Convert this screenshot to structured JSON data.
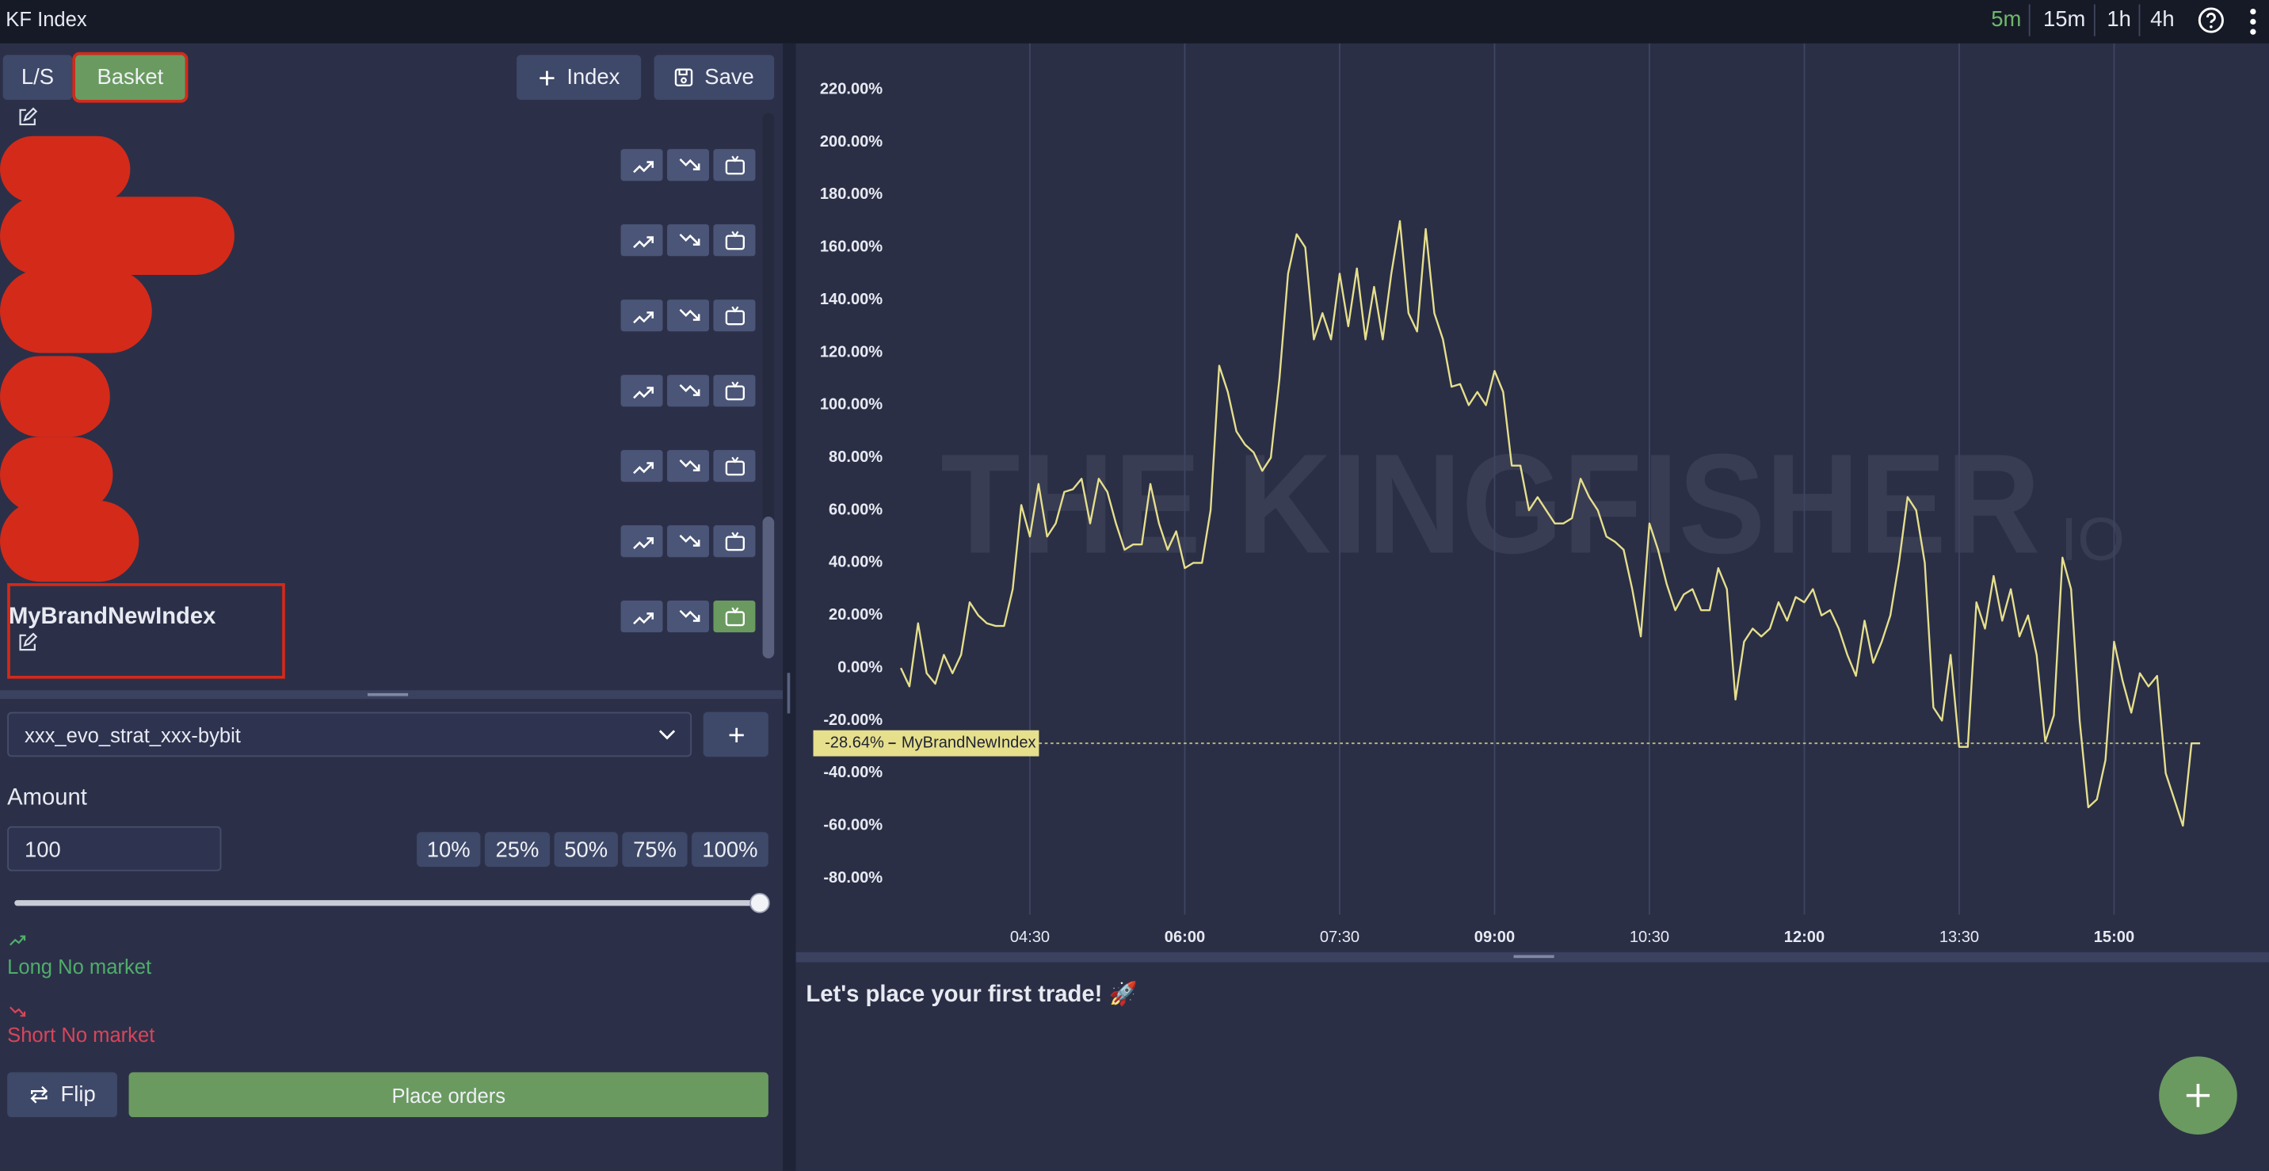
{
  "header": {
    "title": "KF Index",
    "timeframes": [
      "5m",
      "15m",
      "1h",
      "4h"
    ]
  },
  "left_panel": {
    "tabs": [
      "L/S",
      "Basket"
    ],
    "actions": [
      "Index",
      "Save"
    ],
    "selected_index": "MyBrandNewIndex",
    "account": "xxx_evo_strat_xxx-bybit",
    "amount_label": "Amount",
    "amount_value": "100",
    "percent_buttons": [
      "10%",
      "25%",
      "50%",
      "75%",
      "100%"
    ],
    "long_status": "Long No market",
    "short_status": "Short No market",
    "flip": "Flip",
    "place_orders": "Place orders"
  },
  "chart_data": {
    "type": "line",
    "watermark": "THE KINGFISHER",
    "watermark_suffix": "IO",
    "grid": "x",
    "x": [
      "03:15",
      "03:20",
      "03:25",
      "03:30",
      "03:35",
      "03:40",
      "03:45",
      "03:50",
      "03:55",
      "04:00",
      "04:05",
      "04:10",
      "04:15",
      "04:20",
      "04:25",
      "04:30",
      "04:35",
      "04:40",
      "04:45",
      "04:50",
      "04:55",
      "05:00",
      "05:05",
      "05:10",
      "05:15",
      "05:20",
      "05:25",
      "05:30",
      "05:35",
      "05:40",
      "05:45",
      "05:50",
      "05:55",
      "06:00",
      "06:05",
      "06:10",
      "06:15",
      "06:20",
      "06:25",
      "06:30",
      "06:35",
      "06:40",
      "06:45",
      "06:50",
      "06:55",
      "07:00",
      "07:05",
      "07:10",
      "07:15",
      "07:20",
      "07:25",
      "07:30",
      "07:35",
      "07:40",
      "07:45",
      "07:50",
      "07:55",
      "08:00",
      "08:05",
      "08:10",
      "08:15",
      "08:20",
      "08:25",
      "08:30",
      "08:35",
      "08:40",
      "08:45",
      "08:50",
      "08:55",
      "09:00",
      "09:05",
      "09:10",
      "09:15",
      "09:20",
      "09:25",
      "09:30",
      "09:35",
      "09:40",
      "09:45",
      "09:50",
      "09:55",
      "10:00",
      "10:05",
      "10:10",
      "10:15",
      "10:20",
      "10:25",
      "10:30",
      "10:35",
      "10:40",
      "10:45",
      "10:50",
      "10:55",
      "11:00",
      "11:05",
      "11:10",
      "11:15",
      "11:20",
      "11:25",
      "11:30",
      "11:35",
      "11:40",
      "11:45",
      "11:50",
      "11:55",
      "12:00",
      "12:05",
      "12:10",
      "12:15",
      "12:20",
      "12:25",
      "12:30",
      "12:35",
      "12:40",
      "12:45",
      "12:50",
      "12:55",
      "13:00",
      "13:05",
      "13:10",
      "13:15",
      "13:20",
      "13:25",
      "13:30",
      "13:35",
      "13:40",
      "13:45",
      "13:50",
      "13:55",
      "14:00",
      "14:05",
      "14:10",
      "14:15",
      "14:20",
      "14:25",
      "14:30",
      "14:35",
      "14:40",
      "14:45",
      "14:50",
      "14:55",
      "15:00",
      "15:05",
      "15:10",
      "15:15",
      "15:20",
      "15:25",
      "15:30",
      "15:35",
      "15:40",
      "15:45",
      "15:50"
    ],
    "series": [
      {
        "name": "MyBrandNewIndex",
        "color": "#e6df8c",
        "values": [
          0,
          -7,
          17,
          -2,
          -6,
          5,
          -2,
          5,
          25,
          20,
          17,
          16,
          16,
          30,
          62,
          50,
          70,
          50,
          55,
          67,
          68,
          72,
          55,
          72,
          67,
          55,
          45,
          47,
          47,
          70,
          55,
          45,
          52,
          38,
          40,
          40,
          60,
          115,
          105,
          90,
          85,
          82,
          75,
          80,
          110,
          150,
          165,
          160,
          125,
          135,
          125,
          150,
          130,
          152,
          125,
          145,
          125,
          150,
          170,
          135,
          128,
          167,
          135,
          125,
          107,
          108,
          100,
          105,
          100,
          113,
          105,
          77,
          77,
          60,
          65,
          60,
          55,
          55,
          57,
          72,
          65,
          60,
          50,
          48,
          45,
          30,
          12,
          55,
          45,
          32,
          22,
          28,
          30,
          22,
          22,
          38,
          30,
          -12,
          10,
          15,
          12,
          15,
          25,
          18,
          27,
          25,
          30,
          20,
          22,
          15,
          5,
          -3,
          18,
          2,
          10,
          20,
          40,
          65,
          60,
          40,
          -15,
          -20,
          5,
          -30,
          -30,
          25,
          15,
          35,
          18,
          30,
          12,
          20,
          5,
          -28,
          -18,
          42,
          30,
          -20,
          -53,
          -50,
          -35,
          10,
          -5,
          -17,
          -2,
          -7,
          -3,
          -40,
          -50,
          -60,
          -28.64,
          -28.64
        ]
      }
    ],
    "price_line": {
      "value": -28.64,
      "label": "-28.64%"
    },
    "xlim": [
      "02:14",
      "16:30"
    ],
    "xticks": [
      "04:30",
      "06:00",
      "07:30",
      "09:00",
      "10:30",
      "12:00",
      "13:30",
      "15:00"
    ],
    "ylim": [
      -93.8,
      237.6
    ],
    "yticks": [
      {
        "value": 220,
        "label": "220.00%"
      },
      {
        "value": 200,
        "label": "200.00%"
      },
      {
        "value": 180,
        "label": "180.00%"
      },
      {
        "value": 160,
        "label": "160.00%"
      },
      {
        "value": 140,
        "label": "140.00%"
      },
      {
        "value": 120,
        "label": "120.00%"
      },
      {
        "value": 100,
        "label": "100.00%"
      },
      {
        "value": 80,
        "label": "80.00%"
      },
      {
        "value": 60,
        "label": "60.00%"
      },
      {
        "value": 40,
        "label": "40.00%"
      },
      {
        "value": 20,
        "label": "20.00%"
      },
      {
        "value": 0,
        "label": "0.00%"
      },
      {
        "value": -20,
        "label": "-20.00%"
      },
      {
        "value": -40,
        "label": "-40.00%"
      },
      {
        "value": -60,
        "label": "-60.00%"
      },
      {
        "value": -80,
        "label": "-80.00%"
      }
    ]
  },
  "trades_panel": {
    "message": "Let's place your first trade! 🚀"
  }
}
